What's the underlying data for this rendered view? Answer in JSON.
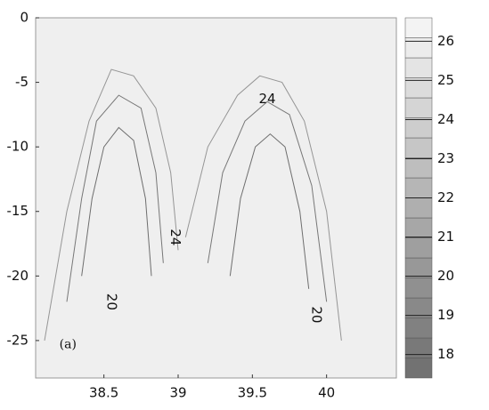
{
  "chart_data": {
    "type": "contour",
    "xlim": [
      38.04,
      40.47
    ],
    "xticks": [
      38.5,
      39,
      39.5,
      40
    ],
    "ylim": [
      -27.9,
      0
    ],
    "yticks": [
      -25,
      -20,
      -15,
      -10,
      -5,
      0
    ],
    "clim": [
      17.4,
      26.6
    ],
    "cticks": [
      18,
      19,
      20,
      21,
      22,
      23,
      24,
      25,
      26
    ],
    "colormap": [
      "#6e6e6e",
      "#f7f7f7"
    ],
    "background": "#efefef",
    "contours": [
      {
        "level": 24,
        "x": [
          38.1,
          38.25,
          38.4,
          38.55,
          38.7,
          38.85,
          38.95,
          39.0
        ],
        "y": [
          -25,
          -15,
          -8,
          -4,
          -4.5,
          -7,
          -12,
          -18
        ]
      },
      {
        "level": 22,
        "x": [
          38.25,
          38.35,
          38.45,
          38.6,
          38.75,
          38.85,
          38.9
        ],
        "y": [
          -22,
          -14,
          -8,
          -6,
          -7,
          -12,
          -19
        ]
      },
      {
        "level": 20,
        "x": [
          38.35,
          38.42,
          38.5,
          38.6,
          38.7,
          38.78,
          38.82
        ],
        "y": [
          -20,
          -14,
          -10,
          -8.5,
          -9.5,
          -14,
          -20
        ]
      },
      {
        "level": 24,
        "x": [
          39.05,
          39.2,
          39.4,
          39.55,
          39.7,
          39.85,
          40.0,
          40.1
        ],
        "y": [
          -17,
          -10,
          -6,
          -4.5,
          -5,
          -8,
          -15,
          -25
        ]
      },
      {
        "level": 22,
        "x": [
          39.2,
          39.3,
          39.45,
          39.6,
          39.75,
          39.9,
          40.0
        ],
        "y": [
          -19,
          -12,
          -8,
          -6.5,
          -7.5,
          -13,
          -22
        ]
      },
      {
        "level": 20,
        "x": [
          39.35,
          39.42,
          39.52,
          39.62,
          39.72,
          39.82,
          39.88
        ],
        "y": [
          -20,
          -14,
          -10,
          -9,
          -10,
          -15,
          -21
        ]
      }
    ],
    "contour_labels": [
      {
        "text": "24",
        "x": 39.6,
        "y": -6.3,
        "rotation": 0
      },
      {
        "text": "24",
        "x": 38.98,
        "y": -17,
        "rotation": 90
      },
      {
        "text": "20",
        "x": 38.55,
        "y": -22,
        "rotation": 90
      },
      {
        "text": "20",
        "x": 39.93,
        "y": -23,
        "rotation": 90
      }
    ],
    "annotation": {
      "text": "(a)",
      "x": 38.2,
      "y": -25.3
    }
  }
}
